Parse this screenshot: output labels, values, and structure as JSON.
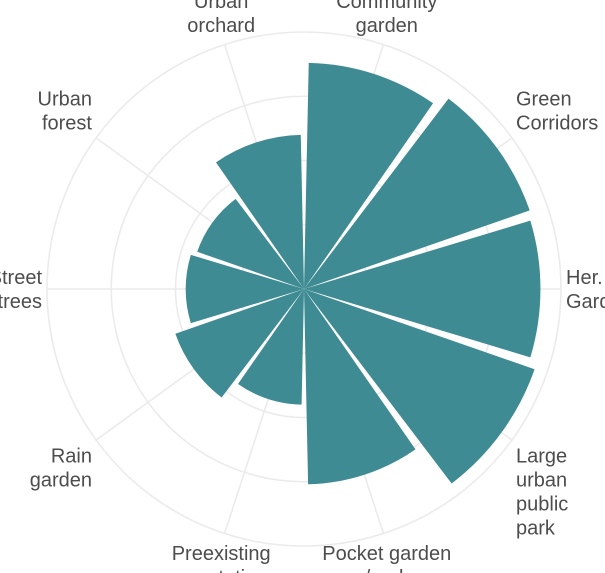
{
  "chart_data": {
    "type": "bar",
    "subtype": "polar",
    "title": "",
    "xlabel": "",
    "ylabel": "",
    "grid": true,
    "bar_color": "#3f8b93",
    "grid_color": "#ebebeb",
    "label_color": "#4d4d4d",
    "ylim": [
      0,
      1
    ],
    "categories": [
      {
        "label_lines": [
          "Community",
          "garden"
        ],
        "value": 0.88
      },
      {
        "label_lines": [
          "Green",
          "Corridors"
        ],
        "value": 0.93
      },
      {
        "label_lines": [
          "Her.",
          "Gard."
        ],
        "value": 0.92
      },
      {
        "label_lines": [
          "Large",
          "urban",
          "public",
          "park"
        ],
        "value": 0.95
      },
      {
        "label_lines": [
          "Pocket garden",
          "/park"
        ],
        "value": 0.76
      },
      {
        "label_lines": [
          "Preexisting",
          "vegetation"
        ],
        "value": 0.45
      },
      {
        "label_lines": [
          "Rain",
          "garden"
        ],
        "value": 0.53
      },
      {
        "label_lines": [
          "Street",
          "trees"
        ],
        "value": 0.46
      },
      {
        "label_lines": [
          "Urban",
          "forest"
        ],
        "value": 0.44
      },
      {
        "label_lines": [
          "Urban",
          "orchard"
        ],
        "value": 0.6
      }
    ]
  }
}
